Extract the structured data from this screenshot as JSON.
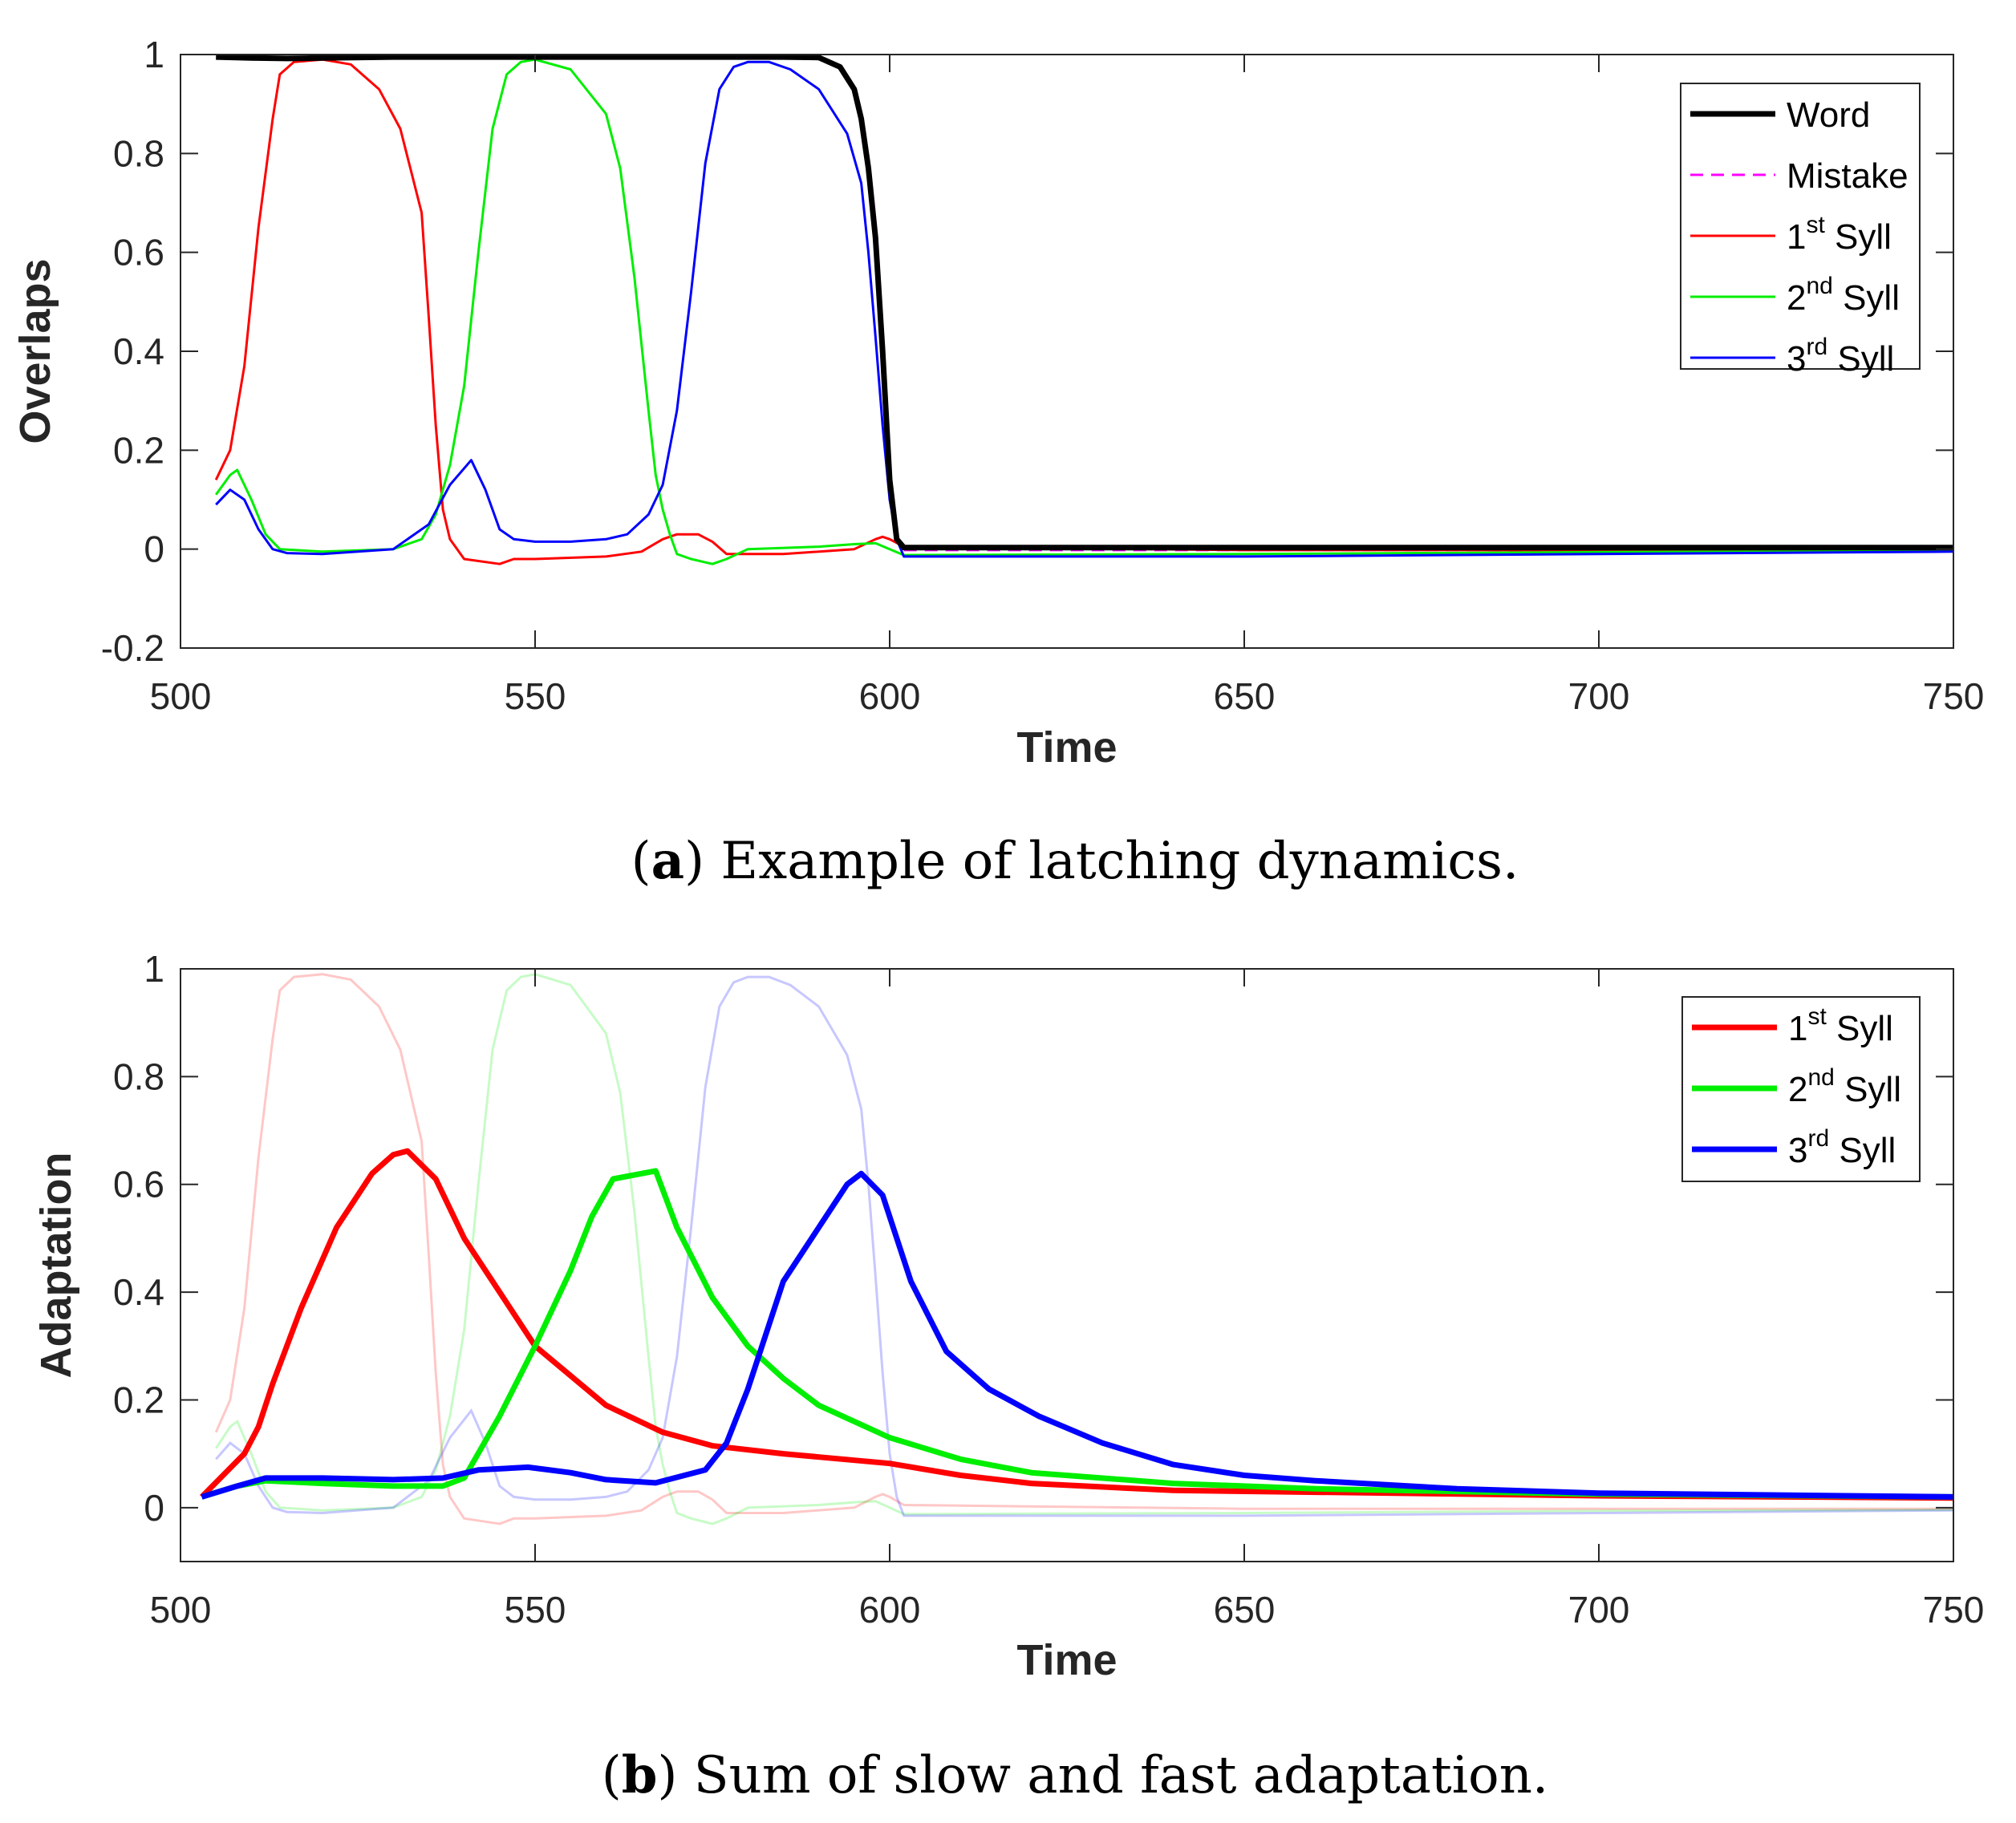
{
  "chart_data": [
    {
      "id": "a",
      "type": "line",
      "caption": {
        "letter": "a",
        "text": ") Example of latching dynamics.",
        "open": "("
      },
      "xlabel": "Time",
      "ylabel": "Overlaps",
      "xlim": [
        500,
        750
      ],
      "ylim": [
        -0.2,
        1
      ],
      "xticks": [
        500,
        550,
        600,
        650,
        700,
        750
      ],
      "yticks": [
        -0.2,
        0,
        0.2,
        0.4,
        0.6,
        0.8,
        1
      ],
      "ytick_labels": [
        "-0.2",
        "0",
        "0.2",
        "0.4",
        "0.6",
        "0.8",
        "1"
      ],
      "legend_position": "top-right",
      "series": [
        {
          "name": "Word",
          "color": "#000000",
          "style": "solid",
          "weight": "thick",
          "x": [
            505,
            510,
            515,
            520,
            530,
            550,
            570,
            585,
            590,
            593,
            595,
            596,
            597,
            598,
            599,
            600,
            601,
            602,
            650,
            700,
            750
          ],
          "y": [
            0.995,
            0.993,
            0.992,
            0.993,
            0.995,
            0.995,
            0.995,
            0.995,
            0.994,
            0.975,
            0.93,
            0.87,
            0.77,
            0.63,
            0.4,
            0.14,
            0.02,
            0.003,
            0.003,
            0.003,
            0.003
          ]
        },
        {
          "name": "Mistake",
          "color": "#ff00ff",
          "style": "dashed",
          "weight": "thin",
          "x": [
            602,
            650,
            700,
            750
          ],
          "y": [
            -0.002,
            -0.002,
            -0.002,
            -0.002
          ]
        },
        {
          "name": "1st Syll",
          "sup": "st",
          "num": "1",
          "color": "#ff0000",
          "style": "solid",
          "weight": "thin",
          "x": [
            505,
            507,
            509,
            511,
            513,
            514,
            516,
            520,
            524,
            528,
            531,
            534,
            535,
            536,
            537,
            538,
            540,
            545,
            547,
            550,
            560,
            565,
            568,
            570,
            573,
            575,
            577,
            585,
            595,
            598,
            599,
            600,
            602,
            650,
            700,
            750
          ],
          "y": [
            0.14,
            0.2,
            0.37,
            0.65,
            0.87,
            0.96,
            0.985,
            0.99,
            0.98,
            0.93,
            0.85,
            0.68,
            0.47,
            0.25,
            0.08,
            0.02,
            -0.02,
            -0.03,
            -0.02,
            -0.02,
            -0.015,
            -0.005,
            0.02,
            0.03,
            0.03,
            0.015,
            -0.01,
            -0.01,
            0.0,
            0.02,
            0.025,
            0.02,
            0.005,
            -0.002,
            -0.002,
            -0.002
          ]
        },
        {
          "name": "2nd Syll",
          "sup": "nd",
          "num": "2",
          "color": "#00ee00",
          "style": "solid",
          "weight": "thin",
          "x": [
            505,
            507,
            508,
            510,
            512,
            514,
            520,
            530,
            534,
            536,
            538,
            540,
            542,
            544,
            546,
            548,
            550,
            555,
            560,
            562,
            564,
            566,
            567,
            568,
            569,
            570,
            572,
            575,
            577,
            580,
            590,
            595,
            598,
            600,
            602,
            650,
            700,
            750
          ],
          "y": [
            0.11,
            0.15,
            0.16,
            0.1,
            0.03,
            0.0,
            -0.005,
            0.0,
            0.02,
            0.07,
            0.17,
            0.33,
            0.6,
            0.85,
            0.96,
            0.985,
            0.99,
            0.97,
            0.88,
            0.77,
            0.55,
            0.28,
            0.15,
            0.08,
            0.03,
            -0.01,
            -0.02,
            -0.03,
            -0.02,
            0.0,
            0.005,
            0.01,
            0.012,
            0.0,
            -0.012,
            -0.01,
            -0.006,
            -0.004
          ]
        },
        {
          "name": "3rd Syll",
          "sup": "rd",
          "num": "3",
          "color": "#0000ff",
          "style": "solid",
          "weight": "thin",
          "x": [
            505,
            507,
            509,
            511,
            513,
            515,
            520,
            530,
            535,
            538,
            541,
            543,
            545,
            547,
            550,
            555,
            560,
            563,
            566,
            568,
            570,
            572,
            574,
            576,
            578,
            580,
            583,
            586,
            590,
            594,
            596,
            597,
            598,
            599,
            600,
            601,
            602,
            650,
            700,
            750
          ],
          "y": [
            0.09,
            0.12,
            0.1,
            0.04,
            0.0,
            -0.008,
            -0.01,
            0.0,
            0.05,
            0.13,
            0.18,
            0.12,
            0.04,
            0.02,
            0.015,
            0.015,
            0.02,
            0.03,
            0.07,
            0.13,
            0.28,
            0.52,
            0.78,
            0.93,
            0.975,
            0.985,
            0.985,
            0.97,
            0.93,
            0.84,
            0.74,
            0.6,
            0.43,
            0.25,
            0.1,
            0.02,
            -0.015,
            -0.015,
            -0.01,
            -0.005
          ]
        }
      ]
    },
    {
      "id": "b",
      "type": "line",
      "caption": {
        "letter": "b",
        "text": ") Sum of slow and fast adaptation.",
        "open": "("
      },
      "xlabel": "Time",
      "ylabel": "Adaptation",
      "xlim": [
        500,
        750
      ],
      "ylim": [
        -0.1,
        1
      ],
      "xticks": [
        500,
        550,
        600,
        650,
        700,
        750
      ],
      "yticks": [
        0,
        0.2,
        0.4,
        0.6,
        0.8,
        1
      ],
      "ytick_labels": [
        "0",
        "0.2",
        "0.4",
        "0.6",
        "0.8",
        "1"
      ],
      "legend_position": "top-right",
      "series": [
        {
          "name": "1st Syll",
          "sup": "st",
          "num": "1",
          "color": "#ff0000",
          "style": "solid",
          "weight": "thick",
          "x": [
            503,
            509,
            511,
            513,
            517,
            522,
            527,
            530,
            532,
            536,
            540,
            545,
            550,
            560,
            568,
            575,
            585,
            595,
            600,
            610,
            620,
            640,
            700,
            750
          ],
          "y": [
            0.02,
            0.1,
            0.15,
            0.23,
            0.37,
            0.52,
            0.62,
            0.655,
            0.662,
            0.61,
            0.5,
            0.4,
            0.3,
            0.19,
            0.14,
            0.115,
            0.1,
            0.088,
            0.082,
            0.06,
            0.045,
            0.032,
            0.022,
            0.018
          ]
        },
        {
          "name": "2nd Syll",
          "sup": "nd",
          "num": "2",
          "color": "#00ee00",
          "style": "solid",
          "weight": "thick",
          "x": [
            503,
            508,
            512,
            520,
            530,
            537,
            540,
            545,
            550,
            555,
            558,
            561,
            567,
            570,
            575,
            580,
            585,
            590,
            600,
            610,
            620,
            640,
            660,
            700,
            750
          ],
          "y": [
            0.02,
            0.04,
            0.05,
            0.045,
            0.04,
            0.04,
            0.055,
            0.17,
            0.3,
            0.44,
            0.54,
            0.61,
            0.625,
            0.52,
            0.39,
            0.3,
            0.24,
            0.19,
            0.13,
            0.09,
            0.065,
            0.045,
            0.035,
            0.025,
            0.02
          ]
        },
        {
          "name": "3rd Syll",
          "sup": "rd",
          "num": "3",
          "color": "#0000ff",
          "style": "solid",
          "weight": "thick",
          "x": [
            503,
            508,
            512,
            520,
            530,
            537,
            542,
            549,
            555,
            560,
            567,
            574,
            577,
            580,
            585,
            590,
            594,
            596,
            599,
            603,
            608,
            614,
            621,
            630,
            640,
            650,
            660,
            680,
            700,
            750
          ],
          "y": [
            0.02,
            0.04,
            0.055,
            0.055,
            0.052,
            0.055,
            0.07,
            0.075,
            0.065,
            0.052,
            0.046,
            0.07,
            0.12,
            0.22,
            0.42,
            0.52,
            0.6,
            0.62,
            0.58,
            0.42,
            0.29,
            0.22,
            0.17,
            0.12,
            0.08,
            0.06,
            0.05,
            0.035,
            0.027,
            0.02
          ]
        }
      ],
      "background_series": [
        {
          "name": "1st Syll (overlap)",
          "color": "#ff0000",
          "opacity": 0.22,
          "ref": "a.1st Syll"
        },
        {
          "name": "2nd Syll (overlap)",
          "color": "#00ee00",
          "opacity": 0.22,
          "ref": "a.2nd Syll"
        },
        {
          "name": "3rd Syll (overlap)",
          "color": "#0000ff",
          "opacity": 0.22,
          "ref": "a.3rd Syll"
        }
      ]
    }
  ]
}
